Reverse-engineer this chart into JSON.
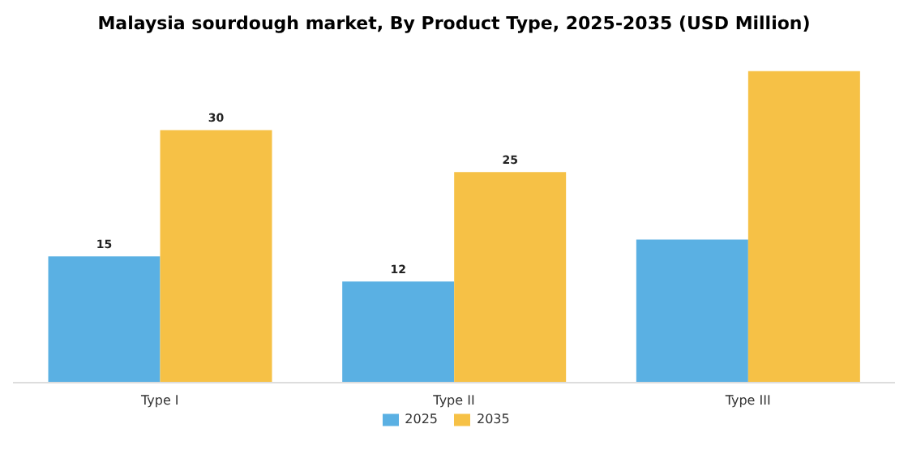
{
  "chart_data": {
    "type": "bar",
    "title": "Malaysia sourdough market, By Product Type, 2025-2035 (USD Million)",
    "categories": [
      "Type I",
      "Type II",
      "Type III"
    ],
    "series": [
      {
        "name": "2025",
        "color": "#5ab0e3",
        "values": [
          15,
          12,
          17
        ],
        "value_labels": [
          "15",
          "12",
          null
        ]
      },
      {
        "name": "2035",
        "color": "#f6c146",
        "values": [
          30,
          25,
          37
        ],
        "value_labels": [
          "30",
          "25",
          null
        ]
      }
    ],
    "grid": false,
    "legend": "bottom"
  }
}
